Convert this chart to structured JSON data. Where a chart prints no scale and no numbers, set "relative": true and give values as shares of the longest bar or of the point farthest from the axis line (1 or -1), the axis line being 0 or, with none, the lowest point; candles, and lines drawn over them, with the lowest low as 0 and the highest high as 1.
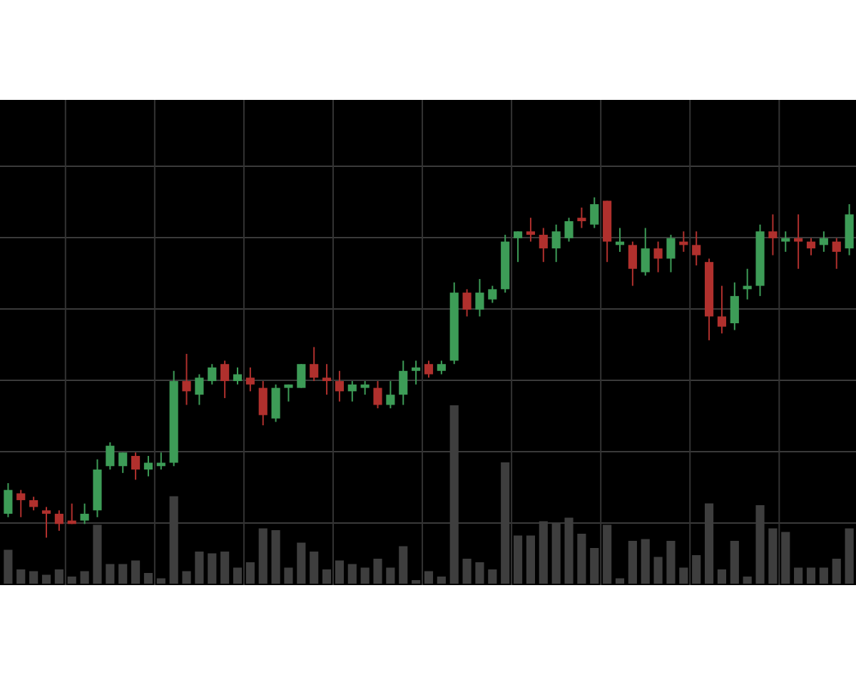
{
  "chart_data": [
    {
      "type": "candlestick",
      "relative": true,
      "grid": true,
      "categories": [
        null,
        null,
        null,
        null,
        null,
        null,
        null,
        null,
        null,
        null,
        null,
        null,
        null,
        null,
        null,
        null,
        null,
        null,
        null,
        null,
        null,
        null,
        null,
        null,
        null,
        null,
        null,
        null,
        null,
        null,
        null,
        null,
        null,
        null,
        null,
        null,
        null,
        null,
        null,
        null,
        null,
        null,
        null,
        null,
        null,
        null,
        null,
        null,
        null,
        null,
        null,
        null,
        null,
        null,
        null,
        null,
        null,
        null,
        null,
        null,
        null,
        null,
        null,
        null,
        null,
        null,
        null
      ],
      "ohlc": [
        [
          0.07,
          0.16,
          0.06,
          0.14
        ],
        [
          0.13,
          0.14,
          0.06,
          0.11
        ],
        [
          0.11,
          0.12,
          0.08,
          0.09
        ],
        [
          0.08,
          0.09,
          0,
          0.07
        ],
        [
          0.07,
          0.08,
          0.02,
          0.04
        ],
        [
          0.05,
          0.1,
          0.04,
          0.04
        ],
        [
          0.05,
          0.1,
          0.04,
          0.07
        ],
        [
          0.08,
          0.23,
          0.06,
          0.2
        ],
        [
          0.21,
          0.28,
          0.2,
          0.27
        ],
        [
          0.21,
          0.25,
          0.19,
          0.25
        ],
        [
          0.24,
          0.25,
          0.17,
          0.2
        ],
        [
          0.2,
          0.24,
          0.18,
          0.22
        ],
        [
          0.21,
          0.25,
          0.2,
          0.22
        ],
        [
          0.22,
          0.49,
          0.21,
          0.46
        ],
        [
          0.46,
          0.54,
          0.39,
          0.43
        ],
        [
          0.42,
          0.48,
          0.39,
          0.47
        ],
        [
          0.46,
          0.51,
          0.45,
          0.5
        ],
        [
          0.51,
          0.52,
          0.41,
          0.46
        ],
        [
          0.46,
          0.5,
          0.45,
          0.48
        ],
        [
          0.47,
          0.5,
          0.43,
          0.45
        ],
        [
          0.44,
          0.46,
          0.33,
          0.36
        ],
        [
          0.35,
          0.45,
          0.34,
          0.44
        ],
        [
          0.44,
          0.45,
          0.4,
          0.45
        ],
        [
          0.44,
          0.51,
          0.44,
          0.51
        ],
        [
          0.51,
          0.56,
          0.46,
          0.47
        ],
        [
          0.47,
          0.51,
          0.42,
          0.46
        ],
        [
          0.46,
          0.49,
          0.4,
          0.43
        ],
        [
          0.43,
          0.46,
          0.4,
          0.45
        ],
        [
          0.44,
          0.46,
          0.42,
          0.45
        ],
        [
          0.44,
          0.46,
          0.38,
          0.39
        ],
        [
          0.39,
          0.46,
          0.38,
          0.42
        ],
        [
          0.42,
          0.52,
          0.39,
          0.49
        ],
        [
          0.49,
          0.52,
          0.45,
          0.5
        ],
        [
          0.51,
          0.52,
          0.47,
          0.48
        ],
        [
          0.49,
          0.52,
          0.48,
          0.51
        ],
        [
          0.52,
          0.75,
          0.51,
          0.72
        ],
        [
          0.72,
          0.73,
          0.65,
          0.67
        ],
        [
          0.67,
          0.76,
          0.65,
          0.72
        ],
        [
          0.7,
          0.74,
          0.69,
          0.73
        ],
        [
          0.73,
          0.89,
          0.72,
          0.87
        ],
        [
          0.88,
          0.9,
          0.81,
          0.9
        ],
        [
          0.9,
          0.94,
          0.87,
          0.89
        ],
        [
          0.89,
          0.91,
          0.81,
          0.85
        ],
        [
          0.85,
          0.92,
          0.81,
          0.9
        ],
        [
          0.88,
          0.94,
          0.87,
          0.93
        ],
        [
          0.94,
          0.97,
          0.91,
          0.93
        ],
        [
          0.92,
          1,
          0.91,
          0.98
        ],
        [
          0.99,
          0.99,
          0.81,
          0.87
        ],
        [
          0.86,
          0.91,
          0.84,
          0.87
        ],
        [
          0.86,
          0.87,
          0.74,
          0.79
        ],
        [
          0.78,
          0.91,
          0.77,
          0.85
        ],
        [
          0.85,
          0.87,
          0.78,
          0.82
        ],
        [
          0.82,
          0.89,
          0.78,
          0.88
        ],
        [
          0.87,
          0.9,
          0.84,
          0.86
        ],
        [
          0.86,
          0.9,
          0.8,
          0.83
        ],
        [
          0.81,
          0.82,
          0.58,
          0.65
        ],
        [
          0.65,
          0.74,
          0.6,
          0.62
        ],
        [
          0.63,
          0.75,
          0.61,
          0.71
        ],
        [
          0.73,
          0.79,
          0.7,
          0.74
        ],
        [
          0.74,
          0.92,
          0.71,
          0.9
        ],
        [
          0.9,
          0.95,
          0.83,
          0.88
        ],
        [
          0.87,
          0.9,
          0.84,
          0.88
        ],
        [
          0.88,
          0.95,
          0.79,
          0.87
        ],
        [
          0.87,
          0.88,
          0.83,
          0.85
        ],
        [
          0.86,
          0.9,
          0.84,
          0.88
        ],
        [
          0.87,
          0.88,
          0.79,
          0.84
        ],
        [
          0.85,
          0.98,
          0.83,
          0.95
        ]
      ],
      "colors": [
        "#3d9c57",
        "#b0302d",
        "#b0302d",
        "#b0302d",
        "#b0302d",
        "#b0302d",
        "#3d9c57",
        "#3d9c57",
        "#3d9c57",
        "#3d9c57",
        "#b0302d",
        "#3d9c57",
        "#3d9c57",
        "#3d9c57",
        "#b0302d",
        "#3d9c57",
        "#3d9c57",
        "#b0302d",
        "#3d9c57",
        "#b0302d",
        "#b0302d",
        "#3d9c57",
        "#3d9c57",
        "#3d9c57",
        "#b0302d",
        "#b0302d",
        "#b0302d",
        "#3d9c57",
        "#3d9c57",
        "#b0302d",
        "#3d9c57",
        "#3d9c57",
        "#3d9c57",
        "#b0302d",
        "#3d9c57",
        "#3d9c57",
        "#b0302d",
        "#3d9c57",
        "#3d9c57",
        "#3d9c57",
        "#3d9c57",
        "#b0302d",
        "#b0302d",
        "#3d9c57",
        "#3d9c57",
        "#b0302d",
        "#3d9c57",
        "#b0302d",
        "#3d9c57",
        "#b0302d",
        "#3d9c57",
        "#b0302d",
        "#3d9c57",
        "#b0302d",
        "#b0302d",
        "#b0302d",
        "#b0302d",
        "#3d9c57",
        "#3d9c57",
        "#3d9c57",
        "#b0302d",
        "#3d9c57",
        "#b0302d",
        "#b0302d",
        "#3d9c57",
        "#b0302d",
        "#3d9c57"
      ]
    },
    {
      "type": "bar",
      "relative": true,
      "color": "#3e3e3e",
      "categories": [
        null,
        null,
        null,
        null,
        null,
        null,
        null,
        null,
        null,
        null,
        null,
        null,
        null,
        null,
        null,
        null,
        null,
        null,
        null,
        null,
        null,
        null,
        null,
        null,
        null,
        null,
        null,
        null,
        null,
        null,
        null,
        null,
        null,
        null,
        null,
        null,
        null,
        null,
        null,
        null,
        null,
        null,
        null,
        null,
        null,
        null,
        null,
        null,
        null,
        null,
        null,
        null,
        null,
        null,
        null,
        null,
        null,
        null,
        null,
        null,
        null,
        null,
        null,
        null,
        null,
        null,
        null
      ],
      "values": [
        0.19,
        0.08,
        0.07,
        0.05,
        0.08,
        0.04,
        0.07,
        0.33,
        0.11,
        0.11,
        0.13,
        0.06,
        0.03,
        0.49,
        0.07,
        0.18,
        0.17,
        0.18,
        0.09,
        0.12,
        0.31,
        0.3,
        0.09,
        0.23,
        0.18,
        0.08,
        0.13,
        0.11,
        0.09,
        0.14,
        0.09,
        0.21,
        0.02,
        0.07,
        0.04,
        1,
        0.14,
        0.12,
        0.08,
        0.68,
        0.27,
        0.27,
        0.35,
        0.34,
        0.37,
        0.28,
        0.2,
        0.33,
        0.03,
        0.24,
        0.25,
        0.15,
        0.24,
        0.09,
        0.16,
        0.45,
        0.08,
        0.24,
        0.04,
        0.44,
        0.31,
        0.29,
        0.09,
        0.09,
        0.09,
        0.14,
        0.31
      ]
    }
  ]
}
